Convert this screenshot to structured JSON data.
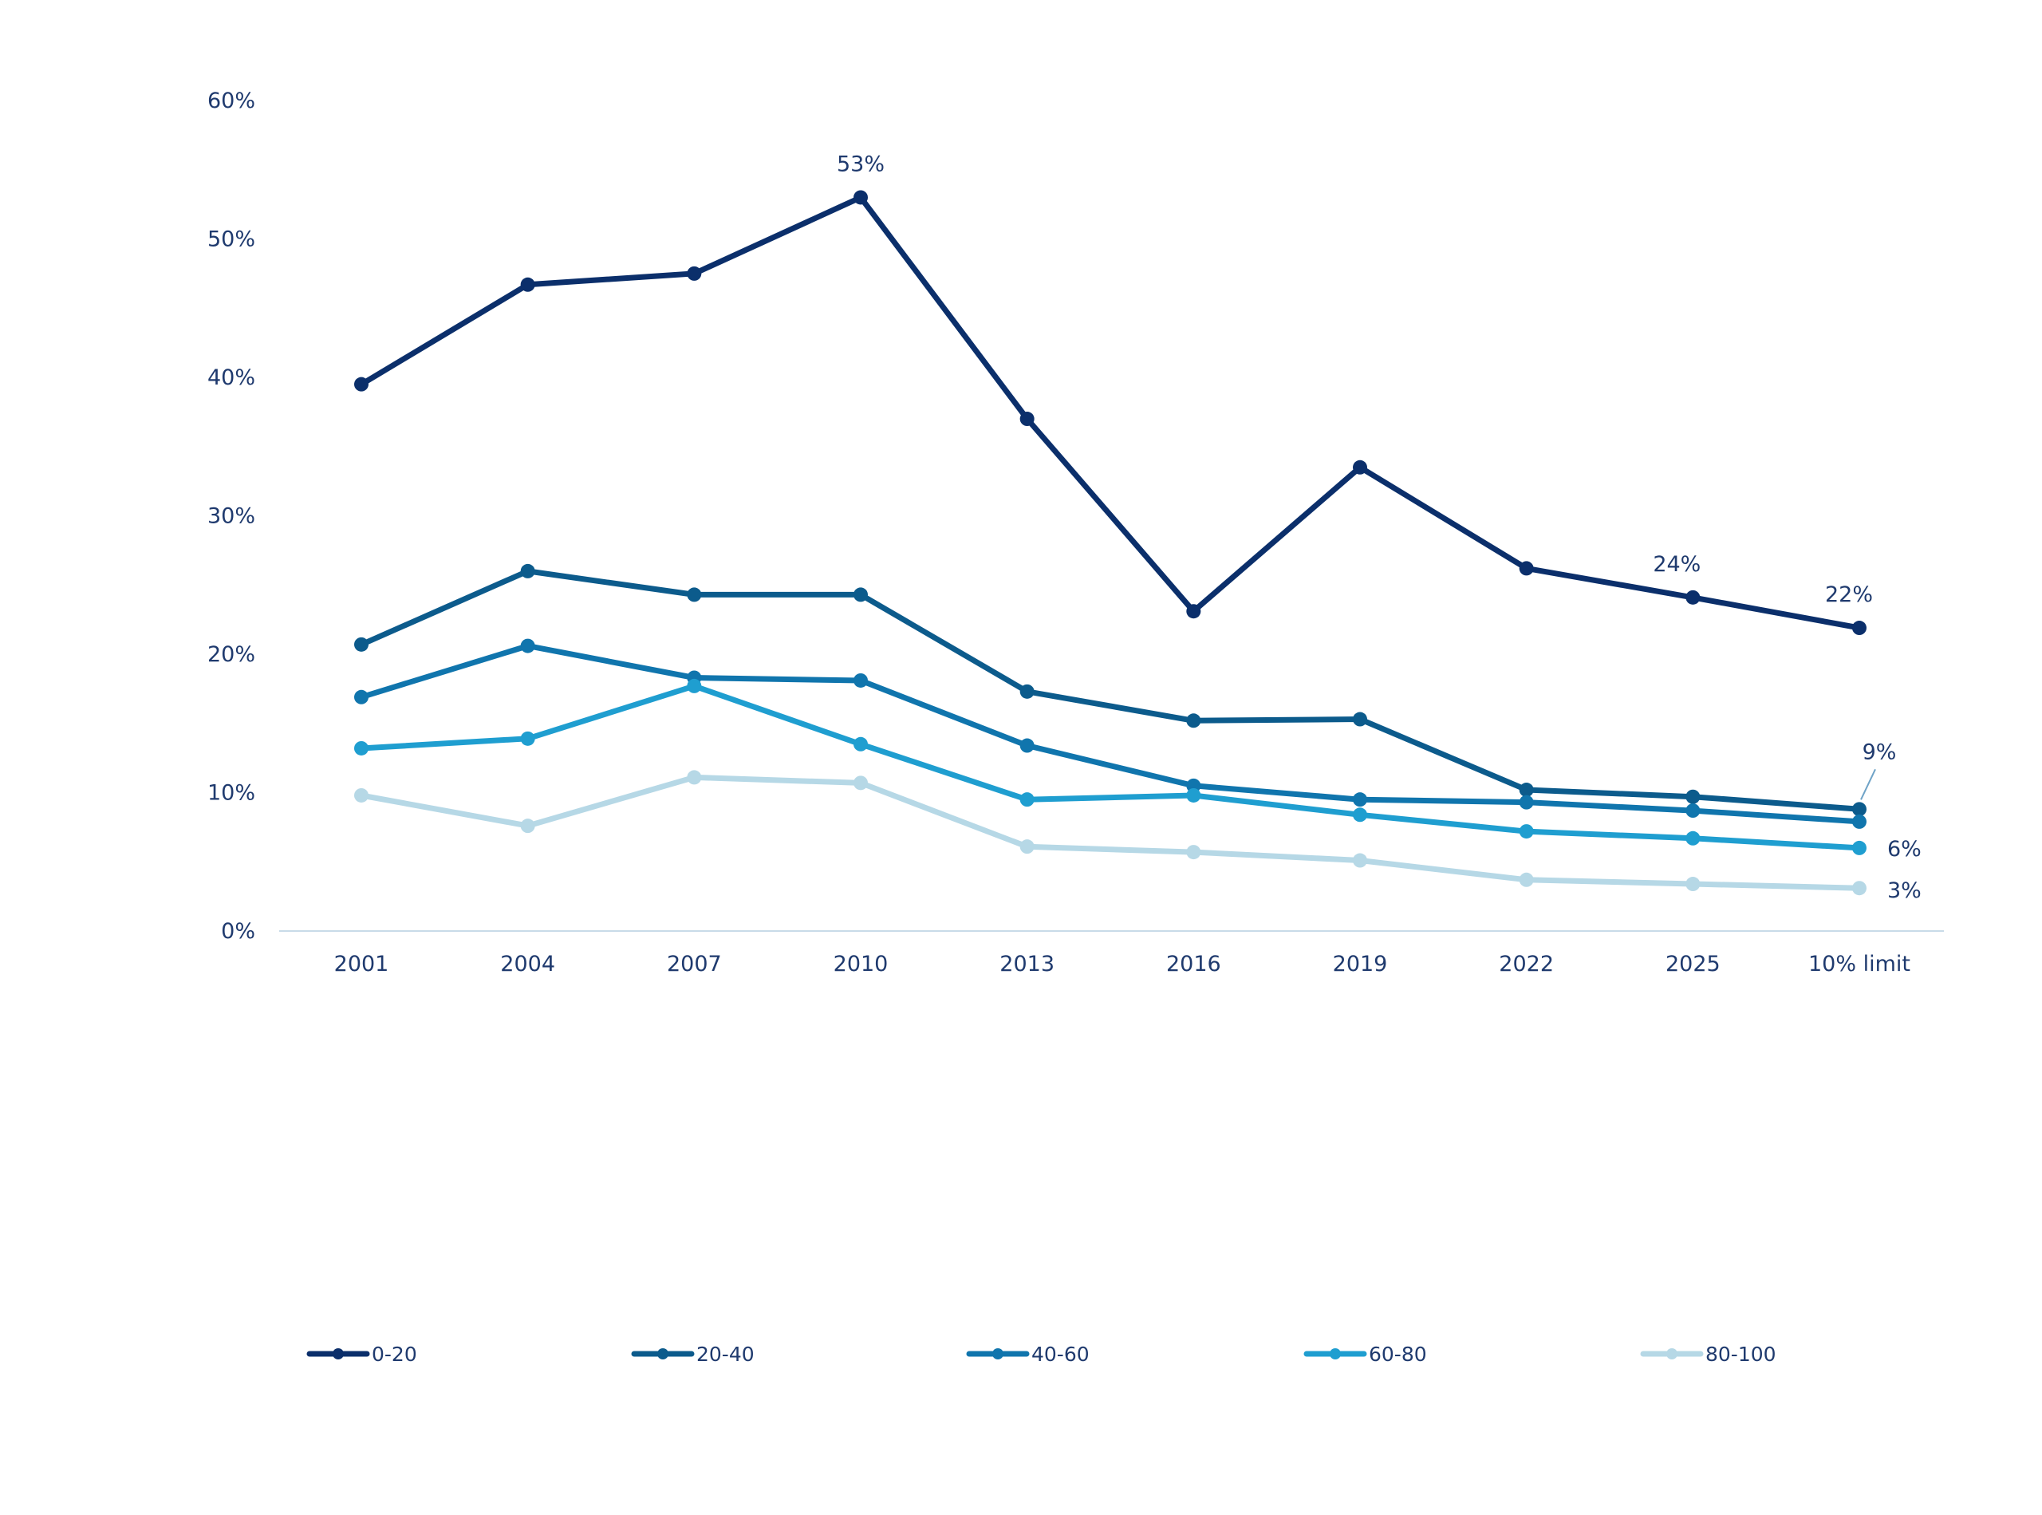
{
  "chart_data": {
    "type": "line",
    "title": "",
    "xlabel": "",
    "ylabel": "",
    "categories": [
      "2001",
      "2004",
      "2007",
      "2010",
      "2013",
      "2016",
      "2019",
      "2022",
      "2025",
      "10% limit"
    ],
    "ylim": [
      0,
      60
    ],
    "yticks": [
      "0%",
      "10%",
      "20%",
      "30%",
      "40%",
      "50%",
      "60%"
    ],
    "grid": false,
    "legend_position": "bottom",
    "series": [
      {
        "name": "0-20",
        "color": "#0b2f6b",
        "values": [
          39.5,
          46.7,
          47.5,
          53.0,
          37.0,
          23.1,
          33.5,
          26.2,
          24.1,
          21.9
        ]
      },
      {
        "name": "20-40",
        "color": "#0c5b8c",
        "values": [
          20.7,
          26.0,
          24.3,
          24.3,
          17.3,
          15.2,
          15.3,
          10.2,
          9.7,
          8.8
        ]
      },
      {
        "name": "40-60",
        "color": "#1075ad",
        "values": [
          16.9,
          20.6,
          18.3,
          18.1,
          13.4,
          10.5,
          9.5,
          9.3,
          8.7,
          7.9
        ]
      },
      {
        "name": "60-80",
        "color": "#1f9ed0",
        "values": [
          13.2,
          13.9,
          17.7,
          13.5,
          9.5,
          9.8,
          8.4,
          7.2,
          6.7,
          6.0
        ]
      },
      {
        "name": "80-100",
        "color": "#b6d8e6",
        "values": [
          9.8,
          7.6,
          11.1,
          10.7,
          6.1,
          5.7,
          5.1,
          3.7,
          3.4,
          3.1
        ]
      }
    ],
    "annotations": [
      {
        "text": "53%",
        "series": "0-20",
        "category": "2010"
      },
      {
        "text": "24%",
        "series": "0-20",
        "category": "2025"
      },
      {
        "text": "22%",
        "series": "0-20",
        "category": "10% limit"
      },
      {
        "text": "9%",
        "series": "20-40",
        "category": "10% limit"
      },
      {
        "text": "6%",
        "series": "60-80",
        "category": "10% limit"
      },
      {
        "text": "3%",
        "series": "80-100",
        "category": "10% limit"
      }
    ]
  }
}
